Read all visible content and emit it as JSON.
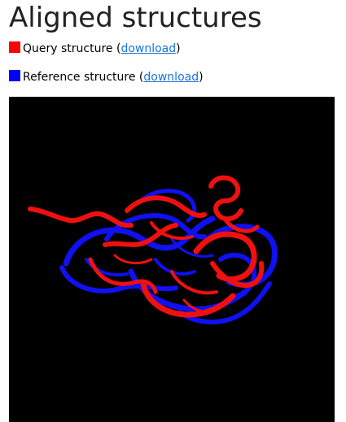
{
  "page": {
    "title": "Aligned structures"
  },
  "legend": {
    "query": {
      "color": "#ff0000",
      "label": "Query structure (",
      "link_text": "download",
      "suffix": ")"
    },
    "reference": {
      "color": "#0000ff",
      "label": "Reference structure (",
      "link_text": "download",
      "suffix": ")"
    }
  },
  "viewer": {
    "background": "#000000",
    "rendering": "protein ribbon cartoon, superposed structures"
  }
}
